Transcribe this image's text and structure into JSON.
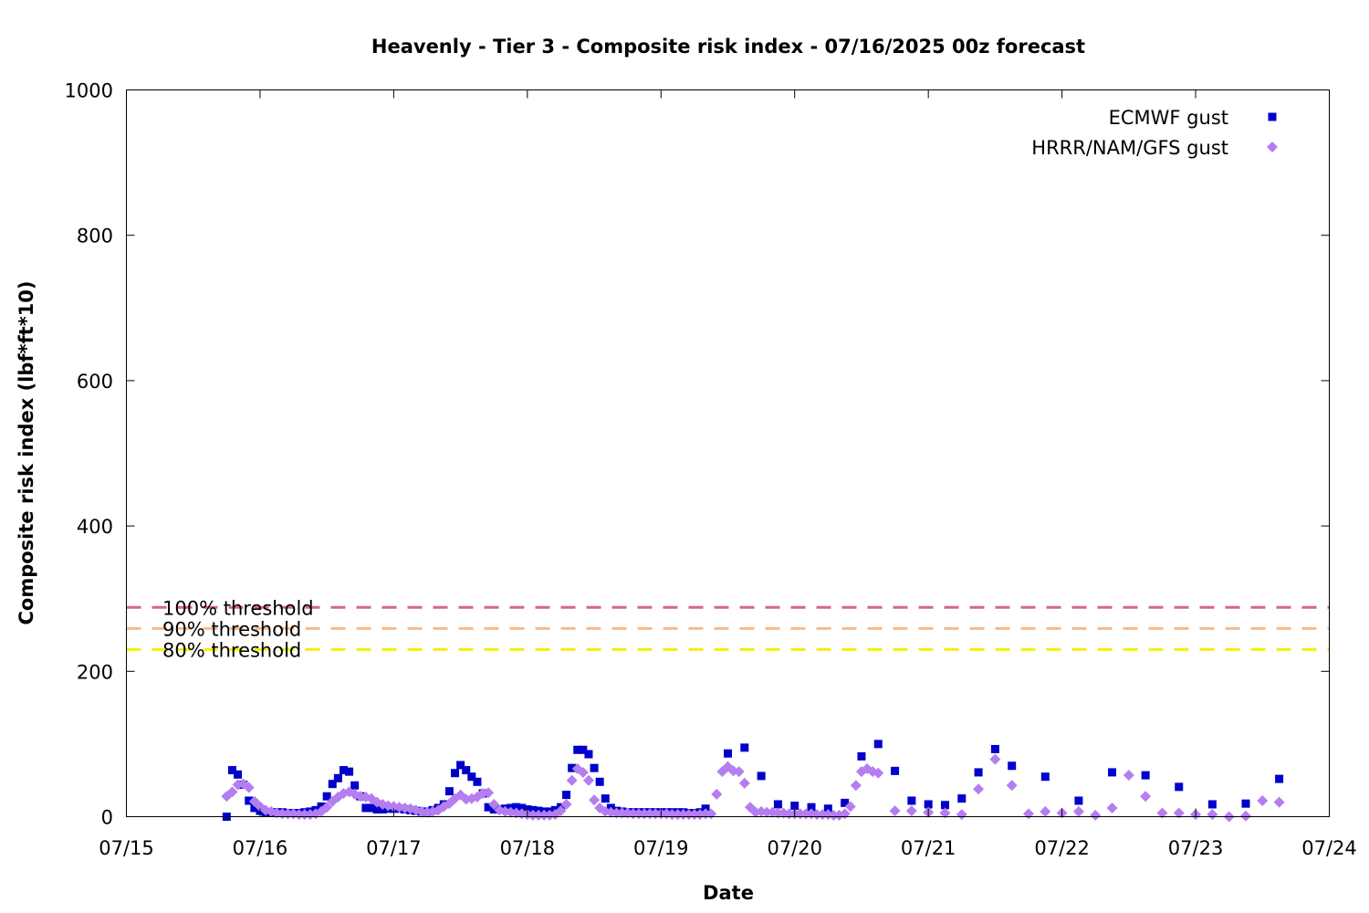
{
  "chart_data": {
    "type": "scatter",
    "title": "Heavenly - Tier 3 - Composite risk index - 07/16/2025 00z forecast",
    "xlabel": "Date",
    "ylabel": "Composite risk index (lbf*ft*10)",
    "x_ticks": [
      "07/15",
      "07/16",
      "07/17",
      "07/18",
      "07/19",
      "07/20",
      "07/21",
      "07/22",
      "07/23",
      "07/24"
    ],
    "y_ticks": [
      "0",
      "200",
      "400",
      "600",
      "800",
      "1000"
    ],
    "xlim": [
      "07/15 00:00",
      "07/24 00:00"
    ],
    "ylim": [
      0,
      1000
    ],
    "legend_position": "top-right",
    "grid": false,
    "thresholds": [
      {
        "name": "100% threshold",
        "value": 288,
        "color": "#d9667f"
      },
      {
        "name": "90% threshold",
        "value": 259,
        "color": "#f7b98a"
      },
      {
        "name": "80% threshold",
        "value": 230,
        "color": "#f5f000"
      }
    ],
    "series": [
      {
        "name": "ECMWF gust",
        "marker": "square",
        "color": "#0000cc",
        "points": [
          [
            "07/15 18:00",
            0
          ],
          [
            "07/15 19:00",
            64
          ],
          [
            "07/15 20:00",
            58
          ],
          [
            "07/15 21:00",
            44
          ],
          [
            "07/15 22:00",
            22
          ],
          [
            "07/15 23:00",
            12
          ],
          [
            "07/16 00:00",
            8
          ],
          [
            "07/16 01:00",
            6
          ],
          [
            "07/16 02:00",
            6
          ],
          [
            "07/16 03:00",
            6
          ],
          [
            "07/16 04:00",
            6
          ],
          [
            "07/16 05:00",
            5
          ],
          [
            "07/16 06:00",
            5
          ],
          [
            "07/16 07:00",
            5
          ],
          [
            "07/16 08:00",
            6
          ],
          [
            "07/16 09:00",
            7
          ],
          [
            "07/16 10:00",
            9
          ],
          [
            "07/16 11:00",
            14
          ],
          [
            "07/16 12:00",
            28
          ],
          [
            "07/16 13:00",
            45
          ],
          [
            "07/16 14:00",
            53
          ],
          [
            "07/16 15:00",
            64
          ],
          [
            "07/16 16:00",
            62
          ],
          [
            "07/16 17:00",
            43
          ],
          [
            "07/16 18:00",
            28
          ],
          [
            "07/16 19:00",
            12
          ],
          [
            "07/16 20:00",
            12
          ],
          [
            "07/16 21:00",
            10
          ],
          [
            "07/16 22:00",
            10
          ],
          [
            "07/16 23:00",
            11
          ],
          [
            "07/17 00:00",
            11
          ],
          [
            "07/17 01:00",
            11
          ],
          [
            "07/17 02:00",
            10
          ],
          [
            "07/17 03:00",
            9
          ],
          [
            "07/17 04:00",
            8
          ],
          [
            "07/17 05:00",
            7
          ],
          [
            "07/17 06:00",
            7
          ],
          [
            "07/17 07:00",
            9
          ],
          [
            "07/17 08:00",
            12
          ],
          [
            "07/17 09:00",
            17
          ],
          [
            "07/17 10:00",
            35
          ],
          [
            "07/17 11:00",
            60
          ],
          [
            "07/17 12:00",
            71
          ],
          [
            "07/17 13:00",
            64
          ],
          [
            "07/17 14:00",
            55
          ],
          [
            "07/17 15:00",
            48
          ],
          [
            "07/17 16:00",
            32
          ],
          [
            "07/17 17:00",
            13
          ],
          [
            "07/17 18:00",
            10
          ],
          [
            "07/17 19:00",
            10
          ],
          [
            "07/17 20:00",
            11
          ],
          [
            "07/17 21:00",
            12
          ],
          [
            "07/17 22:00",
            13
          ],
          [
            "07/17 23:00",
            12
          ],
          [
            "07/18 00:00",
            10
          ],
          [
            "07/18 01:00",
            9
          ],
          [
            "07/18 02:00",
            8
          ],
          [
            "07/18 03:00",
            7
          ],
          [
            "07/18 04:00",
            7
          ],
          [
            "07/18 05:00",
            9
          ],
          [
            "07/18 06:00",
            13
          ],
          [
            "07/18 07:00",
            30
          ],
          [
            "07/18 08:00",
            67
          ],
          [
            "07/18 09:00",
            92
          ],
          [
            "07/18 10:00",
            92
          ],
          [
            "07/18 11:00",
            86
          ],
          [
            "07/18 12:00",
            67
          ],
          [
            "07/18 13:00",
            48
          ],
          [
            "07/18 14:00",
            25
          ],
          [
            "07/18 15:00",
            12
          ],
          [
            "07/18 16:00",
            8
          ],
          [
            "07/18 17:00",
            7
          ],
          [
            "07/18 18:00",
            6
          ],
          [
            "07/18 19:00",
            6
          ],
          [
            "07/18 20:00",
            6
          ],
          [
            "07/18 21:00",
            6
          ],
          [
            "07/18 22:00",
            6
          ],
          [
            "07/18 23:00",
            6
          ],
          [
            "07/19 00:00",
            6
          ],
          [
            "07/19 01:00",
            6
          ],
          [
            "07/19 02:00",
            6
          ],
          [
            "07/19 03:00",
            6
          ],
          [
            "07/19 04:00",
            6
          ],
          [
            "07/19 05:00",
            5
          ],
          [
            "07/19 06:00",
            5
          ],
          [
            "07/19 07:00",
            6
          ],
          [
            "07/19 08:00",
            11
          ],
          [
            "07/19 12:00",
            87
          ],
          [
            "07/19 15:00",
            95
          ],
          [
            "07/19 18:00",
            56
          ],
          [
            "07/19 21:00",
            17
          ],
          [
            "07/20 00:00",
            15
          ],
          [
            "07/20 03:00",
            13
          ],
          [
            "07/20 06:00",
            11
          ],
          [
            "07/20 09:00",
            19
          ],
          [
            "07/20 12:00",
            83
          ],
          [
            "07/20 15:00",
            100
          ],
          [
            "07/20 18:00",
            63
          ],
          [
            "07/20 21:00",
            22
          ],
          [
            "07/21 00:00",
            17
          ],
          [
            "07/21 03:00",
            16
          ],
          [
            "07/21 06:00",
            25
          ],
          [
            "07/21 09:00",
            61
          ],
          [
            "07/21 12:00",
            93
          ],
          [
            "07/21 15:00",
            70
          ],
          [
            "07/21 21:00",
            55
          ],
          [
            "07/22 03:00",
            22
          ],
          [
            "07/22 09:00",
            61
          ],
          [
            "07/22 15:00",
            57
          ],
          [
            "07/22 21:00",
            41
          ],
          [
            "07/23 03:00",
            17
          ],
          [
            "07/23 09:00",
            18
          ],
          [
            "07/23 15:00",
            52
          ]
        ]
      },
      {
        "name": "HRRR/NAM/GFS gust",
        "marker": "diamond",
        "color": "#b57ef0",
        "points": [
          [
            "07/15 18:00",
            28
          ],
          [
            "07/15 19:00",
            34
          ],
          [
            "07/15 20:00",
            44
          ],
          [
            "07/15 21:00",
            45
          ],
          [
            "07/15 22:00",
            40
          ],
          [
            "07/15 23:00",
            21
          ],
          [
            "07/16 00:00",
            14
          ],
          [
            "07/16 01:00",
            9
          ],
          [
            "07/16 02:00",
            7
          ],
          [
            "07/16 03:00",
            5
          ],
          [
            "07/16 04:00",
            4
          ],
          [
            "07/16 05:00",
            4
          ],
          [
            "07/16 06:00",
            4
          ],
          [
            "07/16 07:00",
            3
          ],
          [
            "07/16 08:00",
            3
          ],
          [
            "07/16 09:00",
            3
          ],
          [
            "07/16 10:00",
            4
          ],
          [
            "07/16 11:00",
            7
          ],
          [
            "07/16 12:00",
            13
          ],
          [
            "07/16 13:00",
            21
          ],
          [
            "07/16 14:00",
            27
          ],
          [
            "07/16 15:00",
            32
          ],
          [
            "07/16 16:00",
            34
          ],
          [
            "07/16 17:00",
            31
          ],
          [
            "07/16 18:00",
            28
          ],
          [
            "07/16 19:00",
            27
          ],
          [
            "07/16 20:00",
            25
          ],
          [
            "07/16 21:00",
            20
          ],
          [
            "07/16 22:00",
            17
          ],
          [
            "07/16 23:00",
            15
          ],
          [
            "07/17 00:00",
            14
          ],
          [
            "07/17 01:00",
            13
          ],
          [
            "07/17 02:00",
            12
          ],
          [
            "07/17 03:00",
            11
          ],
          [
            "07/17 04:00",
            9
          ],
          [
            "07/17 05:00",
            7
          ],
          [
            "07/17 06:00",
            6
          ],
          [
            "07/17 07:00",
            7
          ],
          [
            "07/17 08:00",
            9
          ],
          [
            "07/17 09:00",
            14
          ],
          [
            "07/17 10:00",
            18
          ],
          [
            "07/17 11:00",
            25
          ],
          [
            "07/17 12:00",
            30
          ],
          [
            "07/17 13:00",
            24
          ],
          [
            "07/17 14:00",
            25
          ],
          [
            "07/17 15:00",
            27
          ],
          [
            "07/17 16:00",
            32
          ],
          [
            "07/17 17:00",
            33
          ],
          [
            "07/17 18:00",
            17
          ],
          [
            "07/17 19:00",
            9
          ],
          [
            "07/17 20:00",
            7
          ],
          [
            "07/17 21:00",
            6
          ],
          [
            "07/17 22:00",
            5
          ],
          [
            "07/17 23:00",
            4
          ],
          [
            "07/18 00:00",
            3
          ],
          [
            "07/18 01:00",
            2
          ],
          [
            "07/18 02:00",
            2
          ],
          [
            "07/18 03:00",
            2
          ],
          [
            "07/18 04:00",
            2
          ],
          [
            "07/18 05:00",
            3
          ],
          [
            "07/18 06:00",
            8
          ],
          [
            "07/18 07:00",
            17
          ],
          [
            "07/18 08:00",
            50
          ],
          [
            "07/18 09:00",
            66
          ],
          [
            "07/18 10:00",
            61
          ],
          [
            "07/18 11:00",
            50
          ],
          [
            "07/18 12:00",
            23
          ],
          [
            "07/18 13:00",
            12
          ],
          [
            "07/18 14:00",
            7
          ],
          [
            "07/18 15:00",
            6
          ],
          [
            "07/18 16:00",
            5
          ],
          [
            "07/18 17:00",
            5
          ],
          [
            "07/18 18:00",
            5
          ],
          [
            "07/18 19:00",
            4
          ],
          [
            "07/18 20:00",
            4
          ],
          [
            "07/18 21:00",
            4
          ],
          [
            "07/18 22:00",
            4
          ],
          [
            "07/18 23:00",
            4
          ],
          [
            "07/19 00:00",
            4
          ],
          [
            "07/19 01:00",
            4
          ],
          [
            "07/19 02:00",
            3
          ],
          [
            "07/19 03:00",
            3
          ],
          [
            "07/19 04:00",
            3
          ],
          [
            "07/19 05:00",
            3
          ],
          [
            "07/19 06:00",
            3
          ],
          [
            "07/19 07:00",
            3
          ],
          [
            "07/19 08:00",
            4
          ],
          [
            "07/19 09:00",
            4
          ],
          [
            "07/19 10:00",
            31
          ],
          [
            "07/19 11:00",
            62
          ],
          [
            "07/19 12:00",
            69
          ],
          [
            "07/19 13:00",
            63
          ],
          [
            "07/19 14:00",
            62
          ],
          [
            "07/19 15:00",
            46
          ],
          [
            "07/19 16:00",
            13
          ],
          [
            "07/19 17:00",
            6
          ],
          [
            "07/19 18:00",
            7
          ],
          [
            "07/19 19:00",
            6
          ],
          [
            "07/19 20:00",
            6
          ],
          [
            "07/19 21:00",
            5
          ],
          [
            "07/19 22:00",
            5
          ],
          [
            "07/19 23:00",
            4
          ],
          [
            "07/20 00:00",
            4
          ],
          [
            "07/20 01:00",
            4
          ],
          [
            "07/20 02:00",
            4
          ],
          [
            "07/20 03:00",
            4
          ],
          [
            "07/20 04:00",
            3
          ],
          [
            "07/20 05:00",
            3
          ],
          [
            "07/20 06:00",
            3
          ],
          [
            "07/20 07:00",
            2
          ],
          [
            "07/20 08:00",
            2
          ],
          [
            "07/20 09:00",
            4
          ],
          [
            "07/20 10:00",
            14
          ],
          [
            "07/20 11:00",
            43
          ],
          [
            "07/20 12:00",
            62
          ],
          [
            "07/20 13:00",
            66
          ],
          [
            "07/20 14:00",
            62
          ],
          [
            "07/20 15:00",
            60
          ],
          [
            "07/20 18:00",
            8
          ],
          [
            "07/20 21:00",
            8
          ],
          [
            "07/21 00:00",
            6
          ],
          [
            "07/21 03:00",
            5
          ],
          [
            "07/21 06:00",
            3
          ],
          [
            "07/21 09:00",
            38
          ],
          [
            "07/21 12:00",
            79
          ],
          [
            "07/21 15:00",
            43
          ],
          [
            "07/21 18:00",
            4
          ],
          [
            "07/21 21:00",
            7
          ],
          [
            "07/22 00:00",
            5
          ],
          [
            "07/22 03:00",
            7
          ],
          [
            "07/22 06:00",
            2
          ],
          [
            "07/22 09:00",
            12
          ],
          [
            "07/22 12:00",
            57
          ],
          [
            "07/22 15:00",
            28
          ],
          [
            "07/22 18:00",
            5
          ],
          [
            "07/22 21:00",
            5
          ],
          [
            "07/23 00:00",
            3
          ],
          [
            "07/23 03:00",
            3
          ],
          [
            "07/23 06:00",
            0
          ],
          [
            "07/23 09:00",
            1
          ],
          [
            "07/23 12:00",
            22
          ],
          [
            "07/23 15:00",
            20
          ]
        ]
      }
    ]
  }
}
